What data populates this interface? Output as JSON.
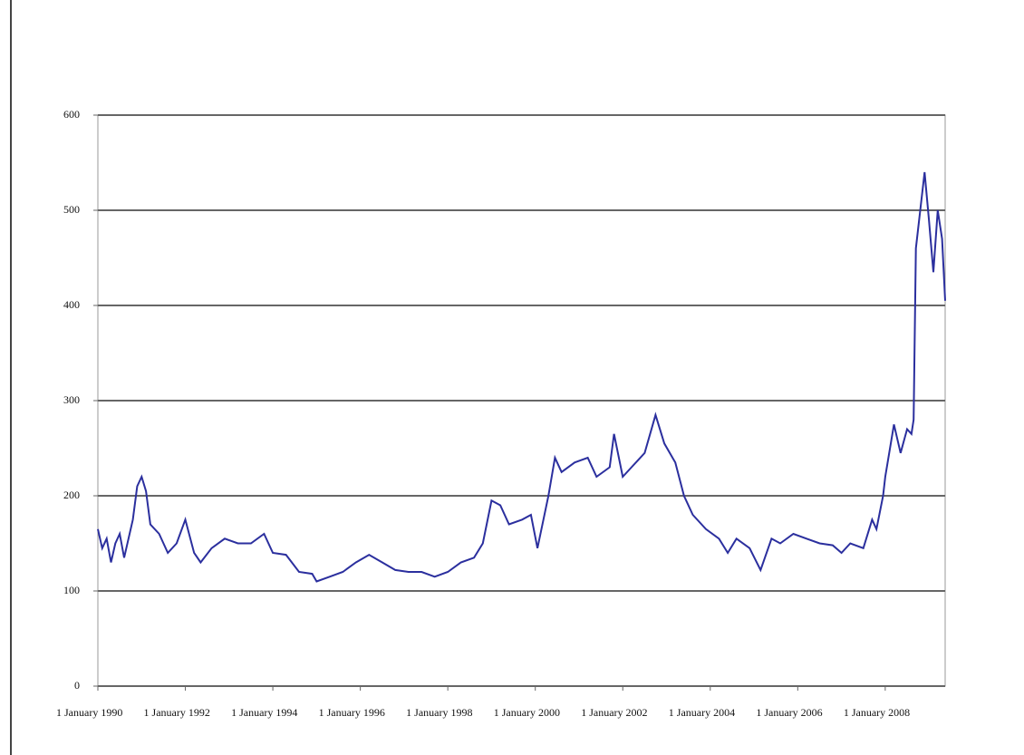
{
  "chart_data": {
    "type": "line",
    "x": [
      1990.0,
      1990.1,
      1990.2,
      1990.3,
      1990.4,
      1990.5,
      1990.6,
      1990.7,
      1990.8,
      1990.9,
      1991.0,
      1991.1,
      1991.2,
      1991.4,
      1991.6,
      1991.8,
      1992.0,
      1992.2,
      1992.35,
      1992.6,
      1992.9,
      1993.2,
      1993.5,
      1993.8,
      1994.0,
      1994.3,
      1994.6,
      1994.9,
      1995.0,
      1995.3,
      1995.6,
      1995.9,
      1996.2,
      1996.5,
      1996.8,
      1997.1,
      1997.4,
      1997.7,
      1998.0,
      1998.3,
      1998.6,
      1998.8,
      1999.0,
      1999.2,
      1999.4,
      1999.7,
      1999.9,
      2000.05,
      2000.3,
      2000.45,
      2000.6,
      2000.9,
      2001.2,
      2001.4,
      2001.7,
      2001.8,
      2002.0,
      2002.2,
      2002.5,
      2002.75,
      2002.95,
      2003.2,
      2003.4,
      2003.6,
      2003.9,
      2004.2,
      2004.4,
      2004.6,
      2004.9,
      2005.15,
      2005.4,
      2005.6,
      2005.9,
      2006.2,
      2006.5,
      2006.8,
      2007.0,
      2007.2,
      2007.5,
      2007.7,
      2007.8,
      2007.95,
      2008.0,
      2008.2,
      2008.35,
      2008.5,
      2008.6,
      2008.65,
      2008.7,
      2008.8,
      2008.9,
      2009.0,
      2009.1,
      2009.2,
      2009.3,
      2009.37
    ],
    "series": [
      {
        "color": "#2b2f9e",
        "values": [
          165,
          145,
          155,
          130,
          150,
          160,
          135,
          155,
          175,
          210,
          220,
          205,
          170,
          160,
          140,
          150,
          175,
          140,
          130,
          145,
          155,
          150,
          150,
          160,
          140,
          138,
          120,
          118,
          110,
          115,
          120,
          130,
          138,
          130,
          122,
          120,
          120,
          115,
          120,
          130,
          135,
          150,
          195,
          190,
          170,
          175,
          180,
          145,
          200,
          240,
          225,
          235,
          240,
          220,
          230,
          265,
          220,
          230,
          245,
          285,
          255,
          235,
          200,
          180,
          165,
          155,
          140,
          155,
          145,
          122,
          155,
          150,
          160,
          155,
          150,
          148,
          140,
          150,
          145,
          175,
          165,
          200,
          220,
          275,
          245,
          270,
          265,
          280,
          460,
          500,
          540,
          490,
          435,
          500,
          470,
          405
        ]
      }
    ],
    "xlim": [
      1990,
      2009.37
    ],
    "xticks": [
      {
        "value": 1990,
        "label": "1 January 1990"
      },
      {
        "value": 1992,
        "label": "1 January 1992"
      },
      {
        "value": 1994,
        "label": "1 January 1994"
      },
      {
        "value": 1996,
        "label": "1 January 1996"
      },
      {
        "value": 1998,
        "label": "1 January 1998"
      },
      {
        "value": 2000,
        "label": "1 January 2000"
      },
      {
        "value": 2002,
        "label": "1 January 2002"
      },
      {
        "value": 2004,
        "label": "1 January 2004"
      },
      {
        "value": 2006,
        "label": "1 January 2006"
      },
      {
        "value": 2008,
        "label": "1 January 2008"
      }
    ],
    "ylim": [
      0,
      600
    ],
    "yticks": [
      0,
      100,
      200,
      300,
      400,
      500,
      600
    ],
    "grid": true
  }
}
